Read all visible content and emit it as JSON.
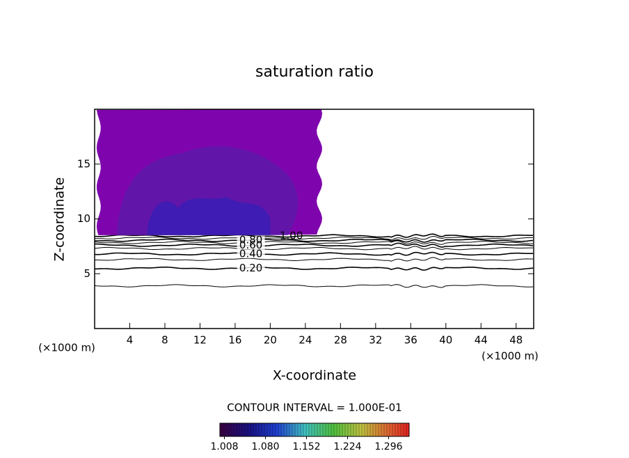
{
  "chart_data": {
    "type": "contour",
    "title": "saturation ratio",
    "x_label": "X-coordinate",
    "y_label": "Z-coordinate",
    "x_unit": "(×1000 m)",
    "y_unit": "(×1000 m)",
    "xlim": [
      0,
      50
    ],
    "ylim": [
      0,
      20
    ],
    "xticks": [
      4,
      8,
      12,
      16,
      20,
      24,
      28,
      32,
      36,
      40,
      44,
      48
    ],
    "yticks": [
      5,
      10,
      15
    ],
    "contours": [
      {
        "level": 0.1,
        "z": 3.9
      },
      {
        "level": 0.2,
        "z": 5.5,
        "label": "0.20"
      },
      {
        "level": 0.3,
        "z": 6.3
      },
      {
        "level": 0.4,
        "z": 6.8,
        "label": "0.40"
      },
      {
        "level": 0.5,
        "z": 7.3
      },
      {
        "level": 0.6,
        "z": 7.6,
        "label": "0.60"
      },
      {
        "level": 0.7,
        "z": 7.85
      },
      {
        "level": 0.8,
        "z": 8.05,
        "label": "0.80"
      },
      {
        "level": 0.9,
        "z": 8.25
      },
      {
        "level": 1.0,
        "z": 8.45,
        "label": "1.00"
      }
    ],
    "shaded": [
      {
        "value": 1.01,
        "color": "#7e05ad"
      },
      {
        "value": 1.03,
        "color": "#5a1aa8"
      },
      {
        "value": 1.05,
        "color": "#3020b8"
      }
    ],
    "contour_interval": "CONTOUR INTERVAL = 1.000E-01",
    "clim": [
      1.0,
      1.332
    ],
    "colorbar_ticks": [
      {
        "value": 1.008,
        "label": "1.008"
      },
      {
        "value": 1.08,
        "label": "1.080"
      },
      {
        "value": 1.152,
        "label": "1.152"
      },
      {
        "value": 1.224,
        "label": "1.224"
      },
      {
        "value": 1.296,
        "label": "1.296"
      }
    ]
  }
}
